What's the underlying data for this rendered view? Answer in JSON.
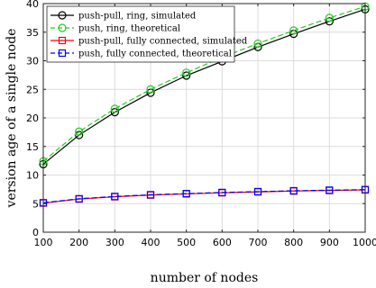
{
  "chart_data": {
    "type": "line",
    "xlabel": "number of nodes",
    "ylabel": "version age of a single node",
    "xlim": [
      100,
      1000
    ],
    "ylim": [
      0,
      40
    ],
    "xticks": [
      100,
      200,
      300,
      400,
      500,
      600,
      700,
      800,
      900,
      1000
    ],
    "yticks": [
      0,
      5,
      10,
      15,
      20,
      25,
      30,
      35,
      40
    ],
    "grid": true,
    "legend_position": "top-left",
    "x": [
      100,
      200,
      300,
      400,
      500,
      600,
      700,
      800,
      900,
      1000
    ],
    "series": [
      {
        "name": "push-pull, ring, simulated",
        "color": "#000000",
        "dash": "solid",
        "marker": "circle",
        "values": [
          11.9,
          17.0,
          21.0,
          24.4,
          27.4,
          29.9,
          32.4,
          34.7,
          36.9,
          39.0
        ]
      },
      {
        "name": "push, ring, theoretical",
        "color": "#22cc22",
        "dash": "dashed",
        "marker": "circle",
        "values": [
          12.4,
          17.6,
          21.6,
          25.0,
          27.9,
          30.6,
          33.0,
          35.3,
          37.5,
          39.5
        ]
      },
      {
        "name": "push-pull, fully connected, simulated",
        "color": "#ff0000",
        "dash": "solid",
        "marker": "square",
        "values": [
          5.1,
          5.8,
          6.2,
          6.5,
          6.7,
          6.9,
          7.05,
          7.2,
          7.3,
          7.4
        ]
      },
      {
        "name": "push, fully connected, theoretical",
        "color": "#0000ff",
        "dash": "dashed",
        "marker": "square",
        "values": [
          5.15,
          5.85,
          6.25,
          6.55,
          6.75,
          6.95,
          7.1,
          7.25,
          7.35,
          7.45
        ]
      }
    ]
  }
}
